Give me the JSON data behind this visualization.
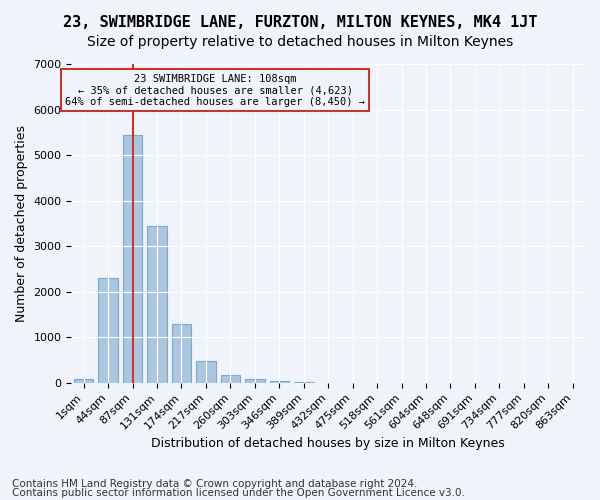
{
  "title": "23, SWIMBRIDGE LANE, FURZTON, MILTON KEYNES, MK4 1JT",
  "subtitle": "Size of property relative to detached houses in Milton Keynes",
  "xlabel": "Distribution of detached houses by size in Milton Keynes",
  "ylabel": "Number of detached properties",
  "footer_line1": "Contains HM Land Registry data © Crown copyright and database right 2024.",
  "footer_line2": "Contains public sector information licensed under the Open Government Licence v3.0.",
  "bin_labels": [
    "1sqm",
    "44sqm",
    "87sqm",
    "131sqm",
    "174sqm",
    "217sqm",
    "260sqm",
    "303sqm",
    "346sqm",
    "389sqm",
    "432sqm",
    "475sqm",
    "518sqm",
    "561sqm",
    "604sqm",
    "648sqm",
    "691sqm",
    "734sqm",
    "777sqm",
    "820sqm",
    "863sqm"
  ],
  "bar_values": [
    80,
    2300,
    5450,
    3450,
    1300,
    475,
    175,
    80,
    30,
    10,
    5,
    3,
    2,
    1,
    1,
    0,
    0,
    0,
    0,
    0,
    0
  ],
  "bar_color": "#adc6e0",
  "bar_edgecolor": "#7aaac8",
  "vline_x": 2,
  "vline_color": "#c0392b",
  "annotation_text": "23 SWIMBRIDGE LANE: 108sqm\n← 35% of detached houses are smaller (4,623)\n64% of semi-detached houses are larger (8,450) →",
  "annotation_box_color": "#c0392b",
  "ylim": [
    0,
    7000
  ],
  "yticks": [
    0,
    1000,
    2000,
    3000,
    4000,
    5000,
    6000,
    7000
  ],
  "background_color": "#f0f4fa",
  "grid_color": "#ffffff",
  "title_fontsize": 11,
  "subtitle_fontsize": 10,
  "axis_label_fontsize": 9,
  "tick_fontsize": 8,
  "annotation_fontsize": 7.5,
  "footer_fontsize": 7.5
}
